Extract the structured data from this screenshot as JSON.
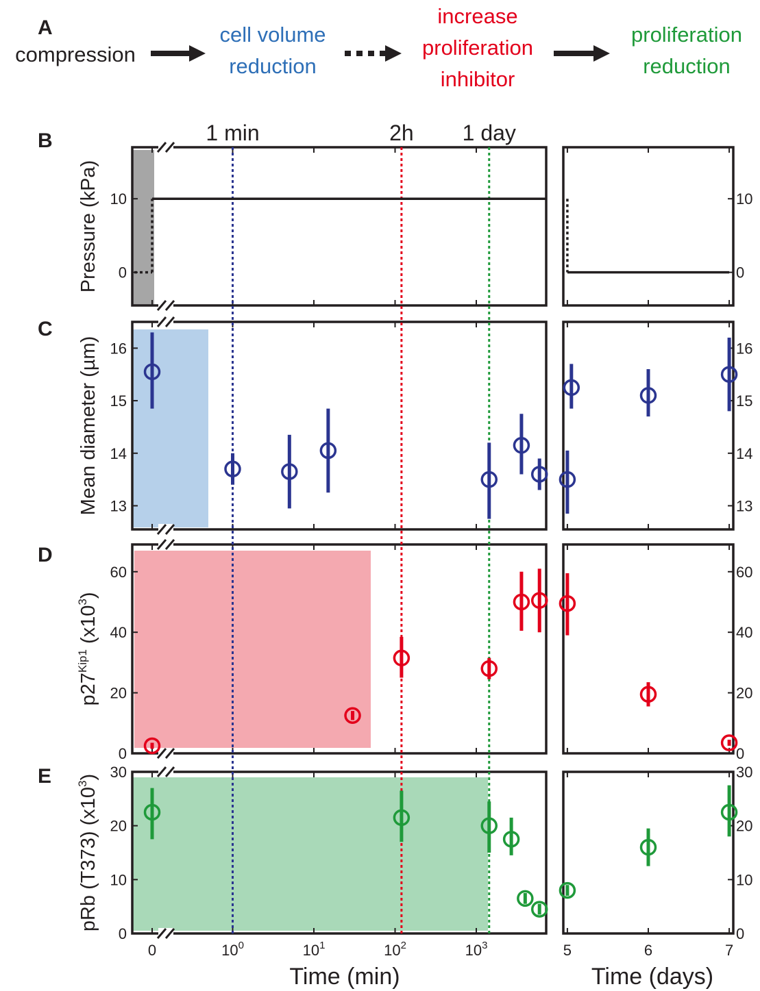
{
  "figure_a": {
    "label": "A",
    "steps": [
      {
        "text": [
          "compression"
        ],
        "color": "#231f20"
      },
      {
        "text": [
          "cell volume",
          "reduction"
        ],
        "color": "#2e6fb7"
      },
      {
        "text": [
          "increase",
          "proliferation",
          "inhibitor"
        ],
        "color": "#e3001b"
      },
      {
        "text": [
          "proliferation",
          "reduction"
        ],
        "color": "#1f9a3a"
      }
    ],
    "arrows": [
      "solid",
      "dotted",
      "solid"
    ]
  },
  "colors": {
    "blue": "#2b3590",
    "red": "#e3001b",
    "green": "#1f9a3a",
    "blue_shade": "#b6d0ea",
    "red_shade": "#f4a9b0",
    "green_shade": "#a9d9b8",
    "grey_shade": "#a6a6a6",
    "axis": "#231f20"
  },
  "markers": [
    {
      "label": "1 min",
      "t_min": 1,
      "color": "#2b3590"
    },
    {
      "label": "2h",
      "t_min": 120,
      "color": "#e3001b"
    },
    {
      "label": "1 day",
      "t_min": 1440,
      "color": "#1f9a3a"
    }
  ],
  "x_left": {
    "label": "Time (min)",
    "ticks": [
      {
        "x": 0,
        "text": "0"
      },
      {
        "x": 1,
        "base": "10",
        "exp": "0"
      },
      {
        "x": 10,
        "base": "10",
        "exp": "1"
      },
      {
        "x": 100,
        "base": "10",
        "exp": "2"
      },
      {
        "x": 1000,
        "base": "10",
        "exp": "3"
      }
    ]
  },
  "x_right": {
    "label": "Time (days)",
    "ticks": [
      "5",
      "6",
      "7"
    ],
    "range": [
      4.95,
      7.05
    ]
  },
  "chart_data": [
    {
      "panel": "B",
      "type": "line",
      "ylabel": "Pressure (kPa)",
      "ylim": [
        -4.5,
        17
      ],
      "yticks": [
        "0",
        "10"
      ],
      "left": {
        "pre": [
          [
            0,
            0
          ]
        ],
        "step": [
          [
            0,
            0
          ],
          [
            0,
            10
          ]
        ],
        "hold": [
          [
            0,
            10
          ],
          [
            6000,
            10
          ]
        ]
      },
      "right": {
        "drop": [
          [
            5,
            10
          ],
          [
            5,
            0
          ]
        ],
        "hold": [
          [
            5,
            0
          ],
          [
            7,
            0
          ]
        ]
      }
    },
    {
      "panel": "C",
      "type": "scatter",
      "ylabel": "Mean diameter (µm)",
      "ylim": [
        12.55,
        16.5
      ],
      "yticks": [
        "13",
        "14",
        "15",
        "16"
      ],
      "points_left": [
        {
          "x": 0,
          "y": 15.55,
          "err": [
            14.85,
            16.3
          ]
        },
        {
          "x": 1,
          "y": 13.7,
          "err": [
            13.4,
            14.0
          ]
        },
        {
          "x": 5,
          "y": 13.65,
          "err": [
            12.95,
            14.35
          ]
        },
        {
          "x": 15,
          "y": 14.05,
          "err": [
            13.25,
            14.85
          ]
        },
        {
          "x": 1440,
          "y": 13.5,
          "err": [
            12.75,
            14.2
          ]
        },
        {
          "x": 3600,
          "y": 14.15,
          "err": [
            13.6,
            14.75
          ]
        },
        {
          "x": 6000,
          "y": 13.6,
          "err": [
            13.3,
            13.9
          ]
        }
      ],
      "points_right": [
        {
          "x": 5,
          "y": 13.5,
          "err": [
            12.85,
            14.05
          ]
        },
        {
          "x": 5.05,
          "y": 15.25,
          "err": [
            14.85,
            15.7
          ]
        },
        {
          "x": 6,
          "y": 15.1,
          "err": [
            14.7,
            15.6
          ]
        },
        {
          "x": 7,
          "y": 15.5,
          "err": [
            14.8,
            16.2
          ]
        }
      ]
    },
    {
      "panel": "D",
      "type": "scatter",
      "ylabel_main": "p27",
      "ylabel_sup": "Kip1",
      "ylabel_rest": " (x10",
      "ylabel_exp": "3",
      "ylabel_end": ")",
      "ylim": [
        0,
        69
      ],
      "yticks": [
        "0",
        "20",
        "40",
        "60"
      ],
      "points_left": [
        {
          "x": 0,
          "y": 2.5,
          "err": [
            1.5,
            3.5
          ]
        },
        {
          "x": 30,
          "y": 12.5,
          "err": [
            11.0,
            14.0
          ]
        },
        {
          "x": 120,
          "y": 31.5,
          "err": [
            25.0,
            38.5
          ]
        },
        {
          "x": 1440,
          "y": 28.0,
          "err": [
            24.5,
            31.5
          ]
        },
        {
          "x": 3600,
          "y": 50.0,
          "err": [
            40.5,
            60.0
          ]
        },
        {
          "x": 6000,
          "y": 50.5,
          "err": [
            40.0,
            61.0
          ]
        }
      ],
      "points_right": [
        {
          "x": 5,
          "y": 49.5,
          "err": [
            39.0,
            59.5
          ]
        },
        {
          "x": 6,
          "y": 19.5,
          "err": [
            15.5,
            23.5
          ]
        },
        {
          "x": 7,
          "y": 3.5,
          "err": [
            2.5,
            4.5
          ]
        }
      ]
    },
    {
      "panel": "E",
      "type": "scatter",
      "ylabel_main": "pRb (T373) (x10",
      "ylabel_exp": "3",
      "ylabel_end": ")",
      "ylim": [
        0,
        30
      ],
      "yticks": [
        "0",
        "10",
        "20",
        "30"
      ],
      "points_left": [
        {
          "x": 0,
          "y": 22.5,
          "err": [
            17.5,
            27.0
          ]
        },
        {
          "x": 120,
          "y": 21.5,
          "err": [
            17.0,
            26.5
          ]
        },
        {
          "x": 1440,
          "y": 20.0,
          "err": [
            15.0,
            24.5
          ]
        },
        {
          "x": 2700,
          "y": 17.5,
          "err": [
            14.5,
            21.5
          ]
        },
        {
          "x": 4000,
          "y": 6.5,
          "err": [
            5.5,
            7.5
          ]
        },
        {
          "x": 6000,
          "y": 4.5,
          "err": [
            3.5,
            5.5
          ]
        }
      ],
      "points_right": [
        {
          "x": 5,
          "y": 8.0,
          "err": [
            7.0,
            9.0
          ]
        },
        {
          "x": 6,
          "y": 16.0,
          "err": [
            12.5,
            19.5
          ]
        },
        {
          "x": 7,
          "y": 22.5,
          "err": [
            18.0,
            27.5
          ]
        }
      ]
    }
  ]
}
